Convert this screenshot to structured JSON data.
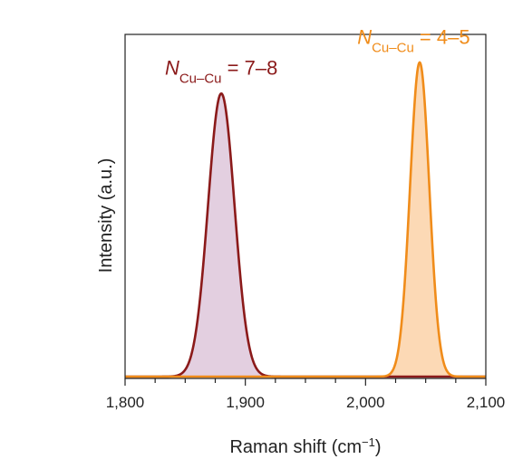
{
  "chart_data": {
    "type": "area",
    "xlabel": "Raman shift (cm",
    "xlabel_sup": "−1",
    "xlabel_suffix": ")",
    "ylabel": "Intensity (a.u.)",
    "xlim": [
      1800,
      2100
    ],
    "ylim": [
      0,
      1.1
    ],
    "xticks": [
      1800,
      1900,
      2000,
      2100
    ],
    "xtick_labels": [
      "1,800",
      "1,900",
      "2,000",
      "2,100"
    ],
    "minor_xticks": [
      1825,
      1850,
      1875,
      1925,
      1950,
      1975,
      2025,
      2050,
      2075
    ],
    "yticks": [],
    "grid": false,
    "series": [
      {
        "name": "N Cu–Cu = 7–8",
        "color": "#8b1a1a",
        "fill": "#e3cfe0",
        "center": 1880,
        "sigma": 11,
        "amplitude": 0.91
      },
      {
        "name": "N Cu–Cu = 4–5",
        "color": "#f08c1a",
        "fill": "#fcd9b5",
        "center": 2045,
        "sigma": 8,
        "amplitude": 1.01
      }
    ],
    "annotations": [
      {
        "italic": "N",
        "sub": "Cu–Cu",
        "text": " = 7–8",
        "color": "#8b1a1a",
        "x": 1880,
        "y": 0.97
      },
      {
        "italic": "N",
        "sub": "Cu–Cu",
        "text": " = 4–5",
        "color": "#f08c1a",
        "x": 2040,
        "y": 1.07
      }
    ]
  }
}
